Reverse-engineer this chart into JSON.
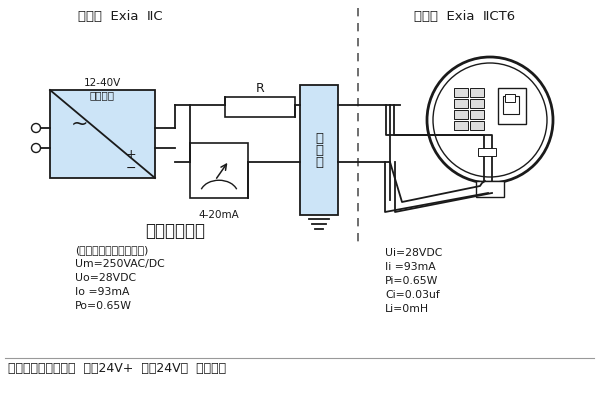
{
  "bg_color": "#ffffff",
  "title_left": "安全区  Exia  ⅡC",
  "title_right": "危险区  Exia  ⅡCT6",
  "diagram_title": "本安型接线图",
  "left_params_line1": "(参见安全栅适用说明书)",
  "left_params_line2": "Um=250VAC/DC",
  "left_params_line3": "Uo=28VDC",
  "left_params_line4": "Io =93mA",
  "left_params_line5": "Po=0.65W",
  "right_params_line1": "Ui=28VDC",
  "right_params_line2": "Ii =93mA",
  "right_params_line3": "Pi=0.65W",
  "right_params_line4": "Ci=0.03uf",
  "right_params_line5": "Li=0mH",
  "bottom_note": "注：一体化接线方式  红：24V+  蓝：24V－  黑：接地",
  "power_label_top": "12-40V",
  "power_label_bot": "直流电源",
  "ammeter_label": "4-20mA",
  "resistor_label": "R",
  "barrier_label_1": "安",
  "barrier_label_2": "全",
  "barrier_label_3": "栅",
  "power_fill": "#cce4f7",
  "barrier_fill": "#cce4f7",
  "line_color": "#1a1a1a",
  "dashed_color": "#555555",
  "fig_w": 5.99,
  "fig_h": 3.93,
  "dpi": 100
}
